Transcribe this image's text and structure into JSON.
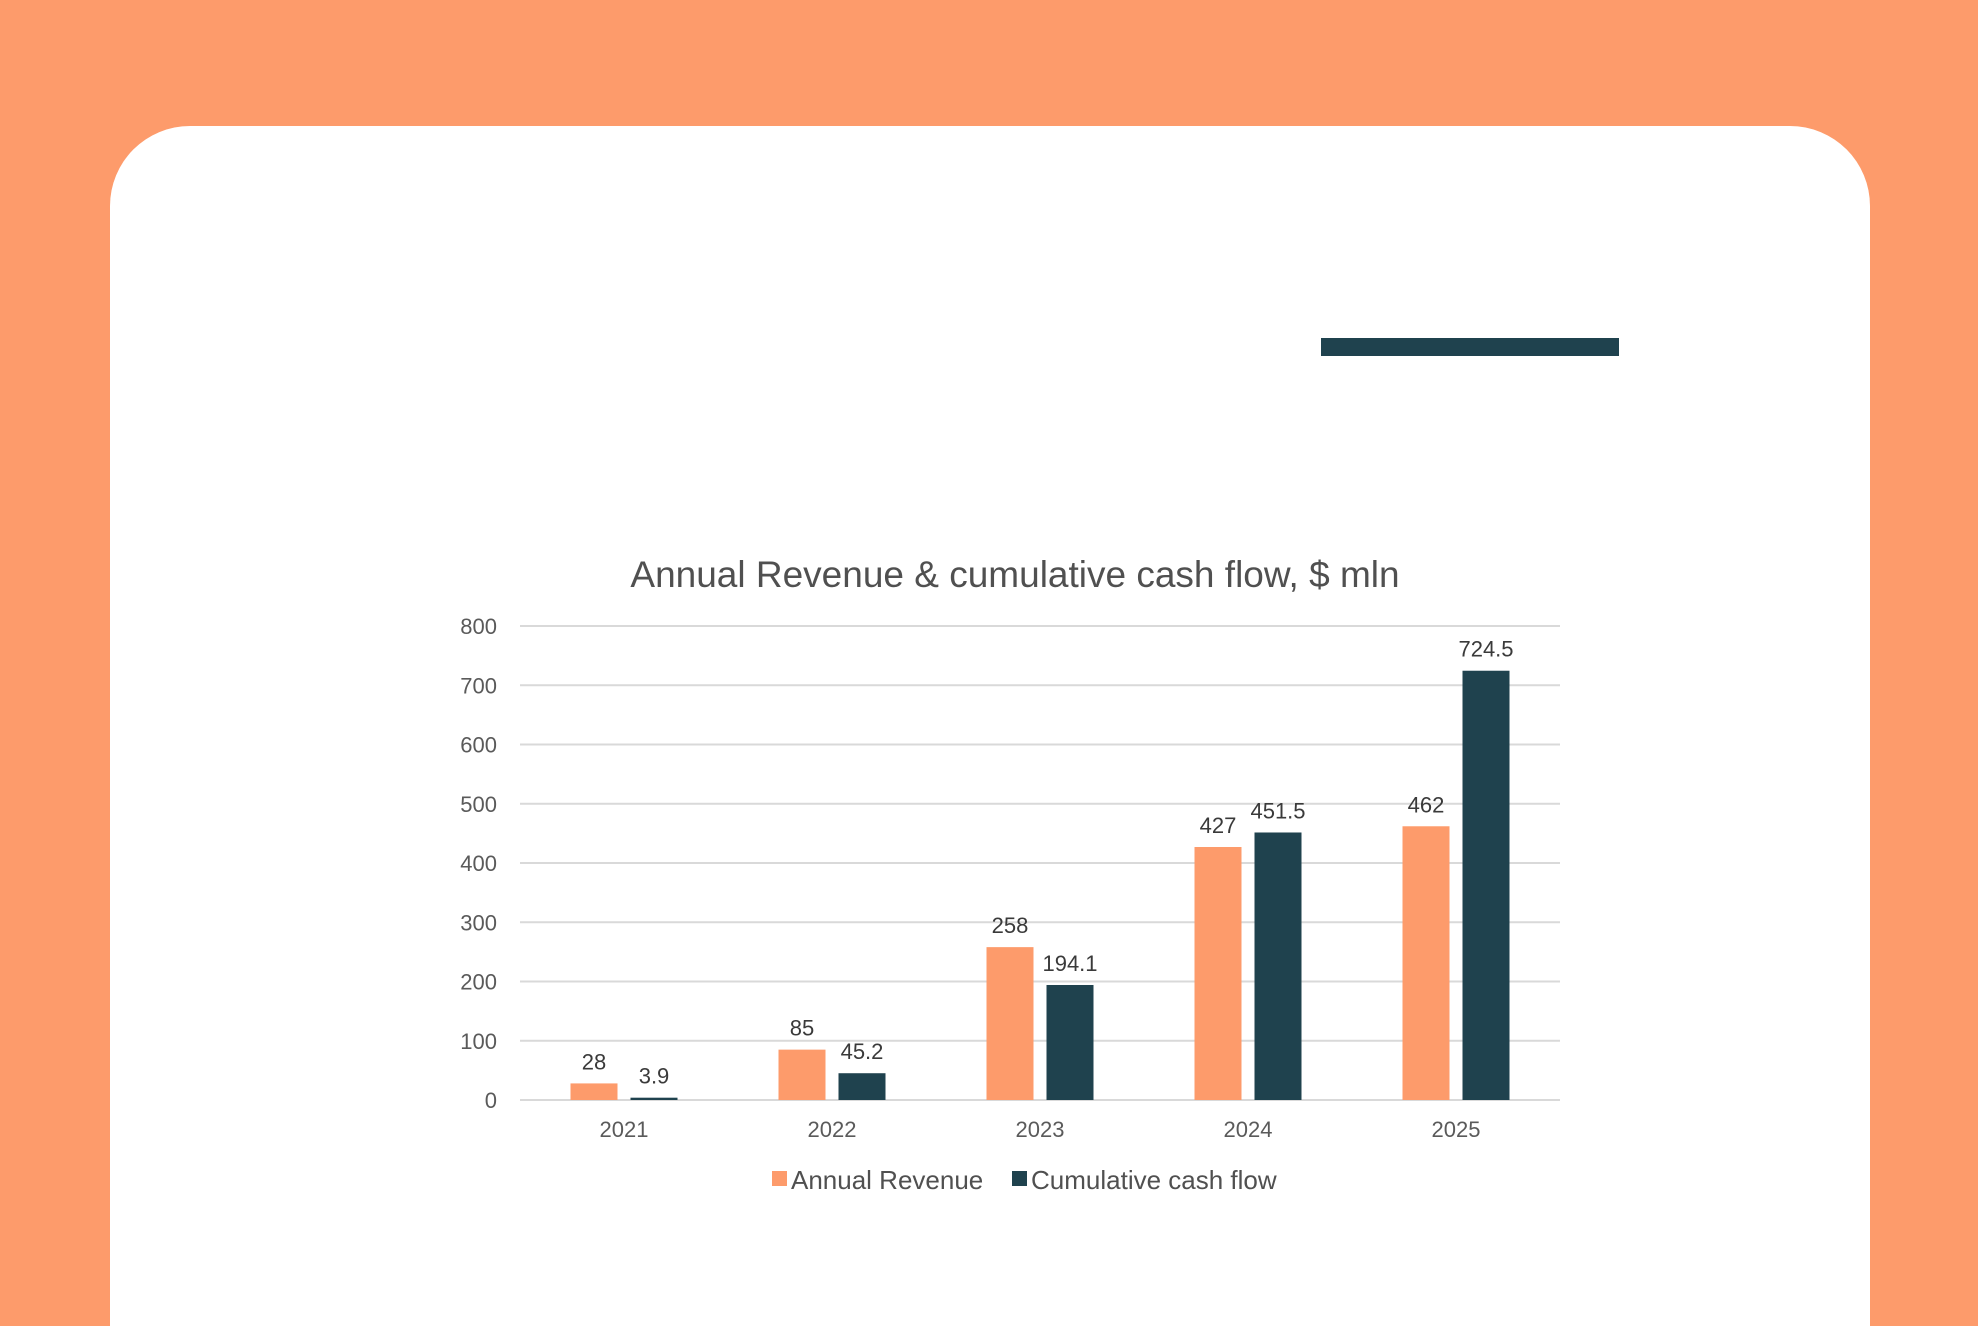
{
  "colors": {
    "background": "#fd9b6b",
    "card": "#ffffff",
    "accent_bar": "#1f424e",
    "revenue": "#fd9b6b",
    "cash_flow": "#1f424e",
    "grid": "#d9d9d9"
  },
  "chart_data": {
    "type": "bar",
    "title": "Annual Revenue & cumulative cash flow, $ mln",
    "xlabel": "",
    "ylabel": "",
    "categories": [
      "2021",
      "2022",
      "2023",
      "2024",
      "2025"
    ],
    "series": [
      {
        "name": "Annual Revenue",
        "values": [
          28,
          85,
          258,
          427,
          462
        ],
        "labels": [
          "28",
          "85",
          "258",
          "427",
          "462"
        ],
        "color": "#fd9b6b"
      },
      {
        "name": "Cumulative cash flow",
        "values": [
          3.9,
          45.2,
          194.1,
          451.5,
          724.5
        ],
        "labels": [
          "3.9",
          "45.2",
          "194.1",
          "451.5",
          "724.5"
        ],
        "color": "#1f424e"
      }
    ],
    "ylim": [
      0,
      800
    ],
    "yticks": [
      "0",
      "100",
      "200",
      "300",
      "400",
      "500",
      "600",
      "700",
      "800"
    ],
    "grid": true,
    "legend_position": "bottom"
  }
}
